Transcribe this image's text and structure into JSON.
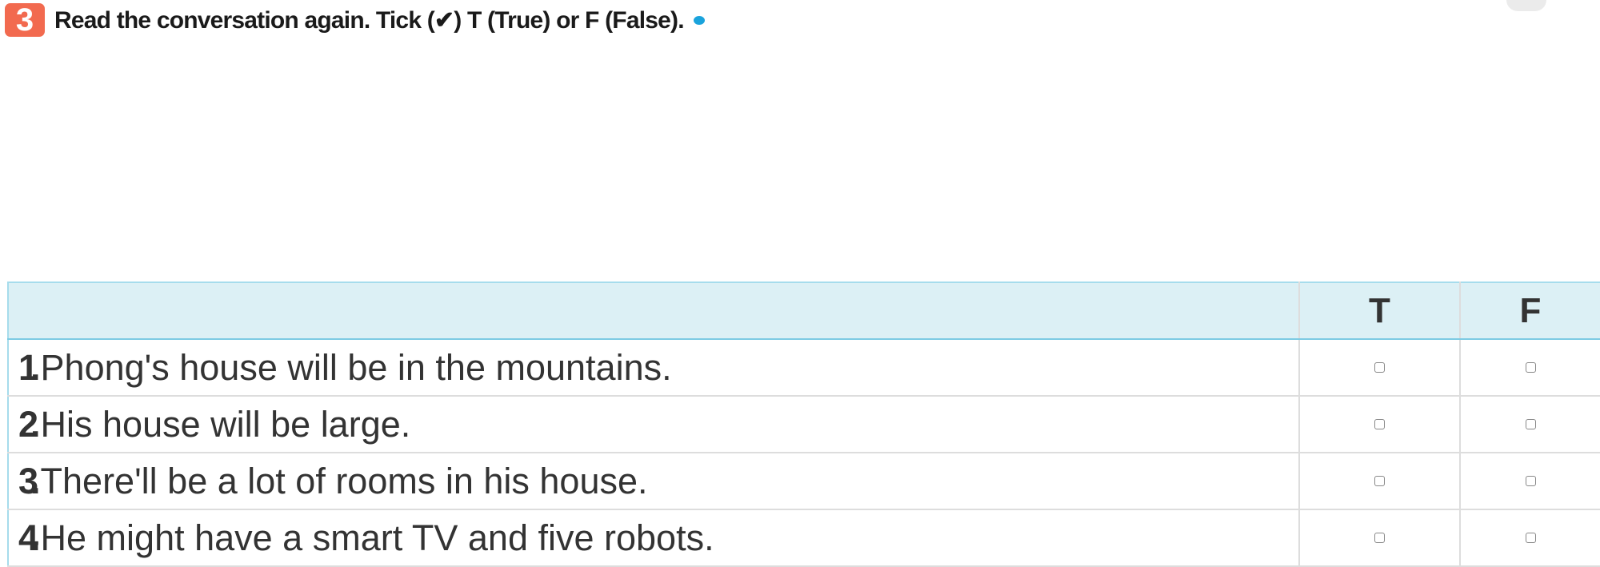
{
  "exercise": {
    "number": "3",
    "instruction": "Read the conversation again. Tick (✔) T (True) or F (False).",
    "audio_icon": "audio-icon",
    "accent": "#f26a4f"
  },
  "table": {
    "headers": [
      "",
      "T",
      "F"
    ],
    "rows": [
      {
        "num": "1.",
        "text": "Phong's house will be in the mountains.",
        "t": false,
        "f": false
      },
      {
        "num": "2.",
        "text": "His house will be large.",
        "t": false,
        "f": false
      },
      {
        "num": "3.",
        "text": "There'll be a lot of rooms in his house.",
        "t": false,
        "f": false
      },
      {
        "num": "4.",
        "text": "He might have a smart TV and five robots.",
        "t": false,
        "f": false
      }
    ],
    "header_color": "#dcf0f5"
  }
}
